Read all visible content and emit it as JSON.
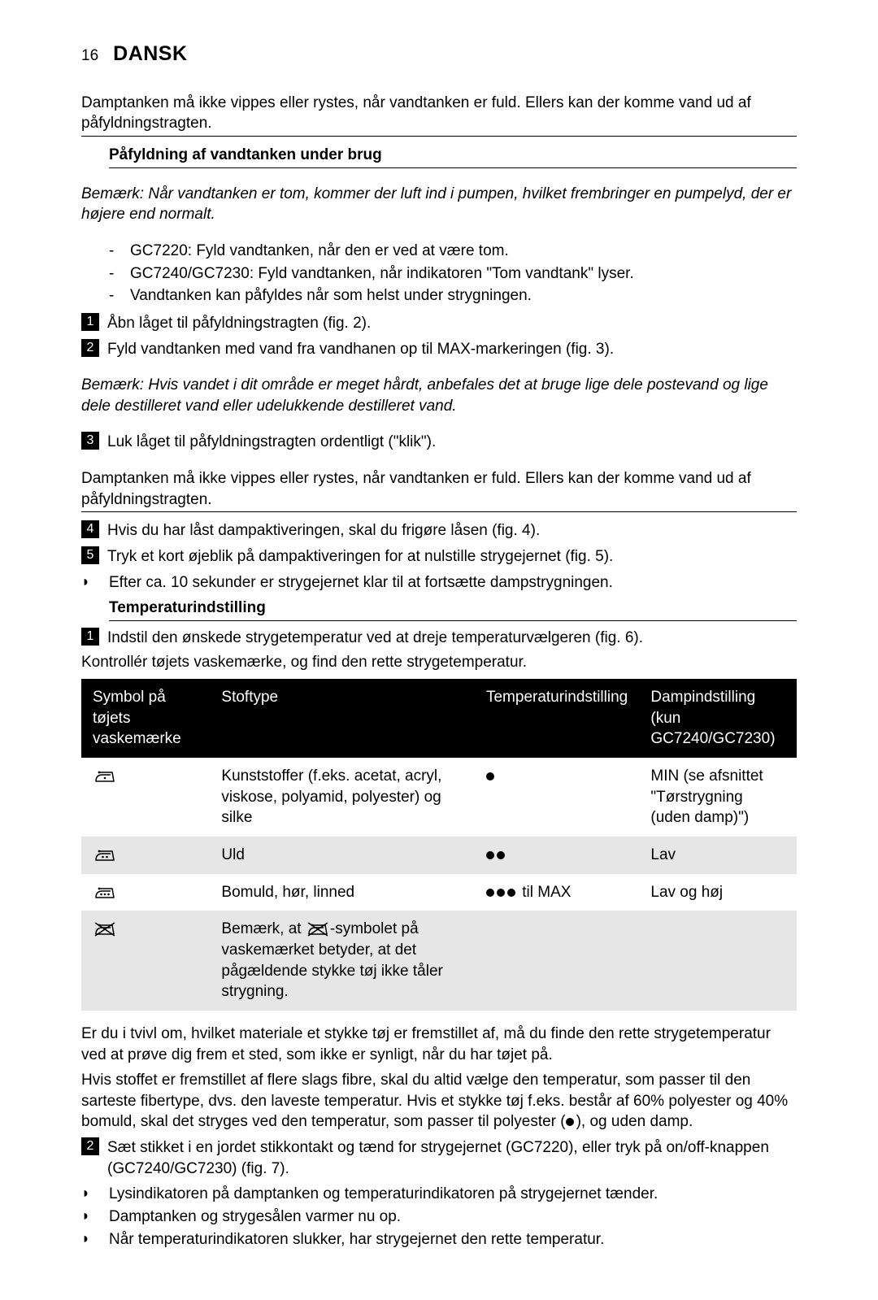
{
  "colors": {
    "text": "#000000",
    "background": "#ffffff",
    "table_header_bg": "#000000",
    "table_header_fg": "#ffffff",
    "row_shade": "#e6e6e6"
  },
  "typography": {
    "body_fontsize_pt": 14,
    "heading_fontsize_pt": 14,
    "lang_title_fontsize_pt": 19,
    "font_family": "Gill Sans / sans-serif"
  },
  "page_number": "16",
  "lang_title": "DANSK",
  "warn1": "Damptanken må ikke vippes eller rystes, når vandtanken er fuld. Ellers kan der komme vand ud af påfyldningstragten.",
  "heading_fill": "Påfyldning af vandtanken under brug",
  "note_fill": "Bemærk: Når vandtanken er tom, kommer der luft ind i pumpen, hvilket frembringer en pumpelyd, der er højere end normalt.",
  "dash_items": [
    "GC7220: Fyld vandtanken, når den er ved at være tom.",
    "GC7240/GC7230: Fyld vandtanken, når indikatoren \"Tom vandtank\" lyser.",
    "Vandtanken kan påfyldes når som helst under strygningen."
  ],
  "step1": "Åbn låget til påfyldningstragten (fig. 2).",
  "step2": "Fyld vandtanken med vand fra vandhanen op til MAX-markeringen (fig. 3).",
  "note_water": "Bemærk: Hvis vandet i dit område er meget hårdt, anbefales det at bruge lige dele postevand og lige dele destilleret vand eller udelukkende destilleret vand.",
  "step3": "Luk låget til påfyldningstragten ordentligt (\"klik\").",
  "warn2": "Damptanken må ikke vippes eller rystes, når vandtanken er fuld. Ellers kan der komme vand ud af påfyldningstragten.",
  "step4": "Hvis du har låst dampaktiveringen, skal du frigøre låsen (fig. 4).",
  "step5": "Tryk et kort øjeblik på dampaktiveringen for at nulstille strygejernet (fig. 5).",
  "step5_sub": "Efter ca. 10 sekunder er strygejernet klar til at fortsætte dampstrygningen.",
  "heading_temp": "Temperaturindstilling",
  "temp_step1": "Indstil den ønskede strygetemperatur ved at dreje temperaturvælgeren (fig. 6).",
  "temp_step1_sub": "Kontrollér tøjets vaskemærke, og find den rette strygetemperatur.",
  "table": {
    "headers": {
      "c1": "Symbol på tøjets vaskemærke",
      "c2": "Stoftype",
      "c3": "Temperaturindstilling",
      "c4": "Dampindstilling (kun GC7240/GC7230)"
    },
    "rows": [
      {
        "shade": false,
        "dots": 1,
        "crossed": false,
        "fabric": "Kunststoffer (f.eks. acetat, acryl, viskose, polyamid, polyester) og silke",
        "temp_dots": 1,
        "temp_extra": "",
        "steam": "MIN (se afsnittet \"Tørstrygning (uden damp)\")"
      },
      {
        "shade": true,
        "dots": 2,
        "crossed": false,
        "fabric": "Uld",
        "temp_dots": 2,
        "temp_extra": "",
        "steam": "Lav"
      },
      {
        "shade": false,
        "dots": 3,
        "crossed": false,
        "fabric": "Bomuld, hør, linned",
        "temp_dots": 3,
        "temp_extra": " til MAX",
        "steam": "Lav og høj"
      },
      {
        "shade": true,
        "dots": 0,
        "crossed": true,
        "fabric_prefix": "Bemærk, at ",
        "fabric_suffix": "-symbolet på vaskemærket betyder, at det pågældende stykke tøj ikke tåler strygning.",
        "temp_dots": 0,
        "temp_extra": "",
        "steam": ""
      }
    ]
  },
  "after_table_p1": "Er du i tvivl om, hvilket materiale et stykke tøj er fremstillet af, må du finde den rette strygetemperatur ved at prøve dig frem et sted, som ikke er synligt, når du har tøjet på.",
  "after_table_p2_a": "Hvis stoffet er fremstillet af flere slags fibre, skal du altid vælge den temperatur, som passer til den sarteste fibertype, dvs. den laveste temperatur. Hvis et stykke tøj f.eks. består af 60% polyester og 40% bomuld, skal det stryges ved den temperatur, som passer til polyester (",
  "after_table_p2_b": "), og uden damp.",
  "temp_step2": "Sæt stikket i en jordet stikkontakt og tænd for strygejernet (GC7220), eller tryk på on/off-knappen (GC7240/GC7230) (fig. 7).",
  "temp_step2_bullets": [
    "Lysindikatoren på damptanken og temperaturindikatoren på strygejernet tænder.",
    "Damptanken og strygesålen varmer nu op.",
    "Når temperaturindikatoren slukker, har strygejernet den rette temperatur."
  ]
}
